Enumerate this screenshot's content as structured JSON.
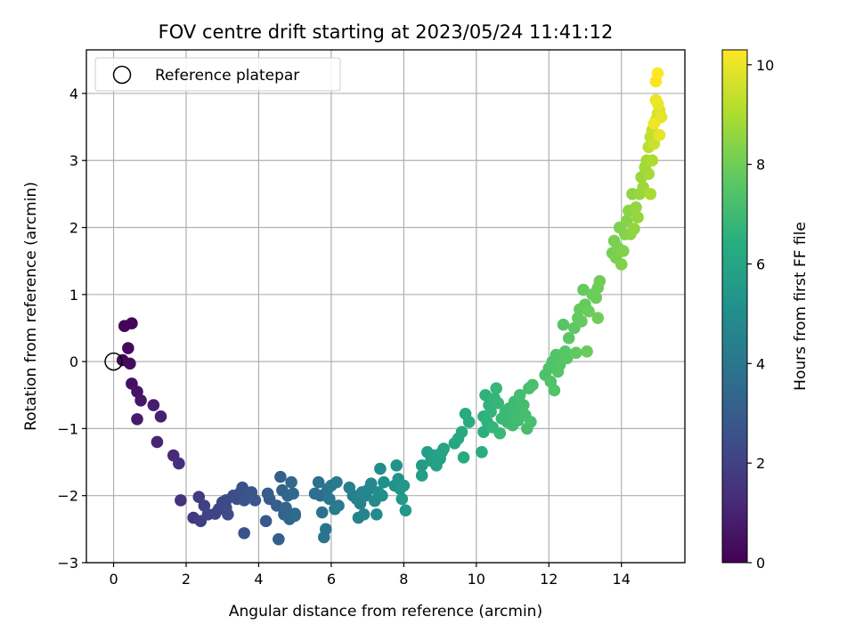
{
  "chart_data": {
    "type": "scatter",
    "title": "FOV centre drift starting at 2023/05/24 11:41:12",
    "xlabel": "Angular distance from reference (arcmin)",
    "ylabel": "Rotation from reference (arcmin)",
    "xlim": [
      -0.75,
      15.75
    ],
    "ylim": [
      -3.0,
      4.65
    ],
    "xticks": [
      0,
      2,
      4,
      6,
      8,
      10,
      12,
      14
    ],
    "yticks": [
      -3,
      -2,
      -1,
      0,
      1,
      2,
      3,
      4
    ],
    "grid": true,
    "legend": {
      "placement": "upper-left",
      "entries": [
        "Reference platepar"
      ]
    },
    "reference_point": {
      "x": 0,
      "y": 0
    },
    "colorbar": {
      "label": "Hours from first FF file",
      "colormap": "viridis",
      "range": [
        0,
        10.3
      ],
      "ticks": [
        0,
        2,
        4,
        6,
        8,
        10
      ]
    },
    "point_fields": [
      "x",
      "y",
      "hours"
    ],
    "points": [
      [
        0.3,
        0.53,
        0.1
      ],
      [
        0.5,
        0.57,
        0.15
      ],
      [
        0.25,
        0.02,
        0.2
      ],
      [
        0.4,
        0.2,
        0.25
      ],
      [
        0.45,
        -0.03,
        0.3
      ],
      [
        0.5,
        -0.33,
        0.45
      ],
      [
        0.65,
        -0.45,
        0.55
      ],
      [
        0.75,
        -0.58,
        0.65
      ],
      [
        0.65,
        -0.86,
        0.75
      ],
      [
        1.1,
        -0.65,
        0.85
      ],
      [
        1.3,
        -0.82,
        0.95
      ],
      [
        1.2,
        -1.2,
        1.05
      ],
      [
        1.65,
        -1.4,
        1.2
      ],
      [
        1.8,
        -1.52,
        1.35
      ],
      [
        1.85,
        -2.07,
        1.5
      ],
      [
        2.2,
        -2.33,
        1.7
      ],
      [
        2.35,
        -2.02,
        1.8
      ],
      [
        2.4,
        -2.38,
        1.9
      ],
      [
        2.5,
        -2.15,
        2.0
      ],
      [
        2.6,
        -2.28,
        2.05
      ],
      [
        2.8,
        -2.27,
        2.1
      ],
      [
        2.9,
        -2.2,
        2.15
      ],
      [
        3.0,
        -2.1,
        2.2
      ],
      [
        3.1,
        -2.18,
        2.25
      ],
      [
        3.1,
        -2.07,
        2.3
      ],
      [
        3.15,
        -2.28,
        2.35
      ],
      [
        3.3,
        -2.0,
        2.4
      ],
      [
        3.4,
        -2.05,
        2.45
      ],
      [
        3.5,
        -1.95,
        2.5
      ],
      [
        3.55,
        -1.88,
        2.55
      ],
      [
        3.6,
        -2.07,
        2.6
      ],
      [
        3.6,
        -2.56,
        2.65
      ],
      [
        3.7,
        -2.0,
        2.7
      ],
      [
        3.8,
        -1.95,
        2.75
      ],
      [
        3.9,
        -2.07,
        2.8
      ],
      [
        4.2,
        -2.38,
        2.9
      ],
      [
        4.25,
        -1.97,
        2.95
      ],
      [
        4.3,
        -2.05,
        3.0
      ],
      [
        4.5,
        -2.15,
        3.05
      ],
      [
        4.55,
        -2.65,
        3.1
      ],
      [
        4.6,
        -1.72,
        3.15
      ],
      [
        4.65,
        -1.92,
        3.2
      ],
      [
        4.7,
        -2.28,
        3.25
      ],
      [
        4.75,
        -2.18,
        3.3
      ],
      [
        4.8,
        -2.0,
        3.35
      ],
      [
        4.85,
        -2.35,
        3.4
      ],
      [
        4.9,
        -1.8,
        3.45
      ],
      [
        4.95,
        -1.97,
        3.5
      ],
      [
        5.0,
        -2.27,
        3.55
      ],
      [
        5.0,
        -2.3,
        3.6
      ],
      [
        5.55,
        -1.97,
        3.7
      ],
      [
        5.65,
        -1.8,
        3.75
      ],
      [
        5.7,
        -2.0,
        3.8
      ],
      [
        5.75,
        -2.25,
        3.85
      ],
      [
        5.8,
        -2.62,
        3.9
      ],
      [
        5.85,
        -2.5,
        3.95
      ],
      [
        5.9,
        -1.9,
        4.0
      ],
      [
        5.95,
        -2.05,
        4.05
      ],
      [
        6.0,
        -1.85,
        4.1
      ],
      [
        6.1,
        -2.2,
        4.15
      ],
      [
        6.15,
        -1.8,
        4.2
      ],
      [
        6.2,
        -2.15,
        4.25
      ],
      [
        6.5,
        -1.88,
        4.35
      ],
      [
        6.6,
        -2.0,
        4.4
      ],
      [
        6.7,
        -2.05,
        4.45
      ],
      [
        6.75,
        -2.33,
        4.5
      ],
      [
        6.8,
        -2.12,
        4.55
      ],
      [
        6.85,
        -1.95,
        4.6
      ],
      [
        6.9,
        -2.28,
        4.65
      ],
      [
        6.95,
        -2.0,
        4.7
      ],
      [
        7.0,
        -1.92,
        4.75
      ],
      [
        7.1,
        -1.82,
        4.8
      ],
      [
        7.2,
        -2.08,
        4.85
      ],
      [
        7.25,
        -2.28,
        4.9
      ],
      [
        7.3,
        -1.95,
        4.95
      ],
      [
        7.35,
        -1.6,
        5.0
      ],
      [
        7.4,
        -2.0,
        5.05
      ],
      [
        7.45,
        -1.8,
        5.1
      ],
      [
        7.75,
        -1.85,
        5.2
      ],
      [
        7.8,
        -1.55,
        5.25
      ],
      [
        7.85,
        -1.75,
        5.3
      ],
      [
        7.9,
        -1.9,
        5.35
      ],
      [
        8.0,
        -1.85,
        5.4
      ],
      [
        8.05,
        -2.22,
        5.45
      ],
      [
        7.95,
        -2.05,
        5.5
      ],
      [
        8.5,
        -1.55,
        5.6
      ],
      [
        8.5,
        -1.7,
        5.65
      ],
      [
        8.65,
        -1.35,
        5.7
      ],
      [
        8.75,
        -1.48,
        5.75
      ],
      [
        8.85,
        -1.4,
        5.8
      ],
      [
        8.9,
        -1.55,
        5.85
      ],
      [
        9.0,
        -1.45,
        5.9
      ],
      [
        9.05,
        -1.35,
        5.95
      ],
      [
        9.1,
        -1.3,
        6.0
      ],
      [
        9.4,
        -1.22,
        6.1
      ],
      [
        9.5,
        -1.15,
        6.15
      ],
      [
        9.6,
        -1.05,
        6.2
      ],
      [
        9.65,
        -1.43,
        6.25
      ],
      [
        9.7,
        -0.78,
        6.3
      ],
      [
        9.8,
        -0.9,
        6.35
      ],
      [
        10.15,
        -1.35,
        6.45
      ],
      [
        10.2,
        -1.05,
        6.5
      ],
      [
        10.2,
        -0.82,
        6.55
      ],
      [
        10.25,
        -0.5,
        6.6
      ],
      [
        10.3,
        -0.9,
        6.62
      ],
      [
        10.35,
        -0.65,
        6.65
      ],
      [
        10.4,
        -0.75,
        6.7
      ],
      [
        10.45,
        -0.98,
        6.72
      ],
      [
        10.5,
        -0.55,
        6.75
      ],
      [
        10.55,
        -0.4,
        6.8
      ],
      [
        10.6,
        -0.62,
        6.82
      ],
      [
        10.65,
        -1.07,
        6.85
      ],
      [
        10.7,
        -0.85,
        6.88
      ],
      [
        10.8,
        -0.75,
        6.9
      ],
      [
        10.85,
        -0.9,
        6.92
      ],
      [
        10.9,
        -0.7,
        6.95
      ],
      [
        10.95,
        -0.85,
        6.98
      ],
      [
        11.0,
        -0.95,
        7.0
      ],
      [
        11.05,
        -0.6,
        7.02
      ],
      [
        11.1,
        -0.75,
        7.05
      ],
      [
        11.15,
        -0.88,
        7.08
      ],
      [
        11.2,
        -0.5,
        7.1
      ],
      [
        11.3,
        -0.65,
        7.12
      ],
      [
        11.35,
        -0.8,
        7.15
      ],
      [
        11.4,
        -1.0,
        7.18
      ],
      [
        11.45,
        -0.4,
        7.2
      ],
      [
        11.5,
        -0.9,
        7.22
      ],
      [
        11.55,
        -0.35,
        7.25
      ],
      [
        11.9,
        -0.2,
        7.3
      ],
      [
        12.0,
        -0.1,
        7.35
      ],
      [
        12.05,
        -0.3,
        7.38
      ],
      [
        12.1,
        0.0,
        7.4
      ],
      [
        12.15,
        -0.43,
        7.42
      ],
      [
        12.2,
        0.1,
        7.45
      ],
      [
        12.25,
        -0.15,
        7.48
      ],
      [
        12.3,
        -0.05,
        7.5
      ],
      [
        12.4,
        0.55,
        7.55
      ],
      [
        12.45,
        0.15,
        7.58
      ],
      [
        12.5,
        0.05,
        7.6
      ],
      [
        12.55,
        0.35,
        7.65
      ],
      [
        12.7,
        0.5,
        7.7
      ],
      [
        12.75,
        0.13,
        7.72
      ],
      [
        12.8,
        0.65,
        7.75
      ],
      [
        12.85,
        0.78,
        7.78
      ],
      [
        12.9,
        0.6,
        7.8
      ],
      [
        12.95,
        1.07,
        7.82
      ],
      [
        13.0,
        0.85,
        7.85
      ],
      [
        13.05,
        0.15,
        7.88
      ],
      [
        13.1,
        0.75,
        7.9
      ],
      [
        13.2,
        1.0,
        7.92
      ],
      [
        13.3,
        0.95,
        7.95
      ],
      [
        13.35,
        1.1,
        7.98
      ],
      [
        13.4,
        1.2,
        8.0
      ],
      [
        13.35,
        0.65,
        8.02
      ],
      [
        13.75,
        1.62,
        8.1
      ],
      [
        13.8,
        1.8,
        8.15
      ],
      [
        13.85,
        1.55,
        8.18
      ],
      [
        13.9,
        1.7,
        8.2
      ],
      [
        13.95,
        2.0,
        8.25
      ],
      [
        14.0,
        1.45,
        8.28
      ],
      [
        14.05,
        1.65,
        8.3
      ],
      [
        14.1,
        1.9,
        8.35
      ],
      [
        14.15,
        2.1,
        8.4
      ],
      [
        14.2,
        2.25,
        8.45
      ],
      [
        14.25,
        1.9,
        8.48
      ],
      [
        14.3,
        2.5,
        8.5
      ],
      [
        14.35,
        1.98,
        8.55
      ],
      [
        14.4,
        2.3,
        8.6
      ],
      [
        14.45,
        2.15,
        8.62
      ],
      [
        14.5,
        2.5,
        8.65
      ],
      [
        14.55,
        2.75,
        8.7
      ],
      [
        14.6,
        2.6,
        8.75
      ],
      [
        14.65,
        2.9,
        8.8
      ],
      [
        14.7,
        3.0,
        8.85
      ],
      [
        14.75,
        2.8,
        8.9
      ],
      [
        14.8,
        2.5,
        8.95
      ],
      [
        14.85,
        3.0,
        9.0
      ],
      [
        14.75,
        3.2,
        9.2
      ],
      [
        14.8,
        3.35,
        9.3
      ],
      [
        14.85,
        3.45,
        9.4
      ],
      [
        14.9,
        3.25,
        9.5
      ],
      [
        14.95,
        3.6,
        9.6
      ],
      [
        15.0,
        3.7,
        9.7
      ],
      [
        15.05,
        3.75,
        9.8
      ],
      [
        15.1,
        3.65,
        9.9
      ],
      [
        15.05,
        3.38,
        9.95
      ],
      [
        14.95,
        3.9,
        10.0
      ],
      [
        15.0,
        3.85,
        10.05
      ],
      [
        14.9,
        3.55,
        10.1
      ],
      [
        14.95,
        4.18,
        10.2
      ],
      [
        15.0,
        4.3,
        10.3
      ]
    ]
  }
}
